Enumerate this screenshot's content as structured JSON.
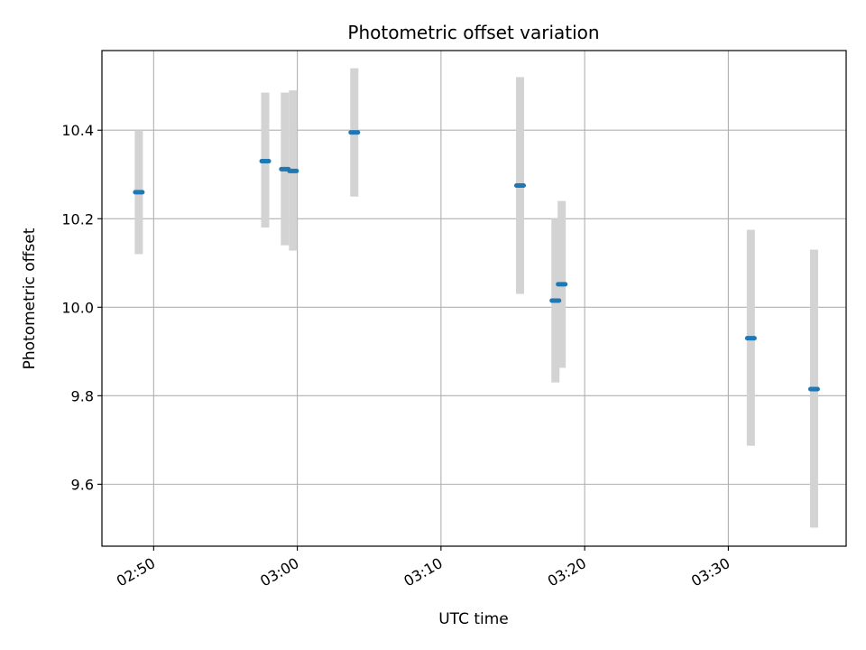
{
  "chart_data": {
    "type": "scatter",
    "title": "Photometric offset variation",
    "xlabel": "UTC time",
    "ylabel": "Photometric offset",
    "grid": true,
    "xlim": [
      "02:46:24",
      "03:38:12"
    ],
    "ylim": [
      9.46,
      10.58
    ],
    "x_ticks": [
      "02:50",
      "03:00",
      "03:10",
      "03:20",
      "03:30"
    ],
    "y_ticks": [
      "9.6",
      "9.8",
      "10.0",
      "10.2",
      "10.4"
    ],
    "colors": {
      "marker": "#1f77b4",
      "errorbar": "#d3d3d3",
      "grid": "#b0b0b0"
    },
    "points": [
      {
        "x": "02:48:58",
        "y": 10.26,
        "ylow": 10.12,
        "yhigh": 10.4
      },
      {
        "x": "02:57:46",
        "y": 10.33,
        "ylow": 10.18,
        "yhigh": 10.485
      },
      {
        "x": "02:59:08",
        "y": 10.312,
        "ylow": 10.14,
        "yhigh": 10.485
      },
      {
        "x": "02:59:42",
        "y": 10.308,
        "ylow": 10.128,
        "yhigh": 10.49
      },
      {
        "x": "03:03:58",
        "y": 10.395,
        "ylow": 10.25,
        "yhigh": 10.54
      },
      {
        "x": "03:15:30",
        "y": 10.275,
        "ylow": 10.03,
        "yhigh": 10.52
      },
      {
        "x": "03:17:58",
        "y": 10.015,
        "ylow": 9.83,
        "yhigh": 10.2
      },
      {
        "x": "03:18:24",
        "y": 10.052,
        "ylow": 9.863,
        "yhigh": 10.24
      },
      {
        "x": "03:31:34",
        "y": 9.93,
        "ylow": 9.687,
        "yhigh": 10.175
      },
      {
        "x": "03:35:58",
        "y": 9.815,
        "ylow": 9.502,
        "yhigh": 10.13
      }
    ]
  }
}
